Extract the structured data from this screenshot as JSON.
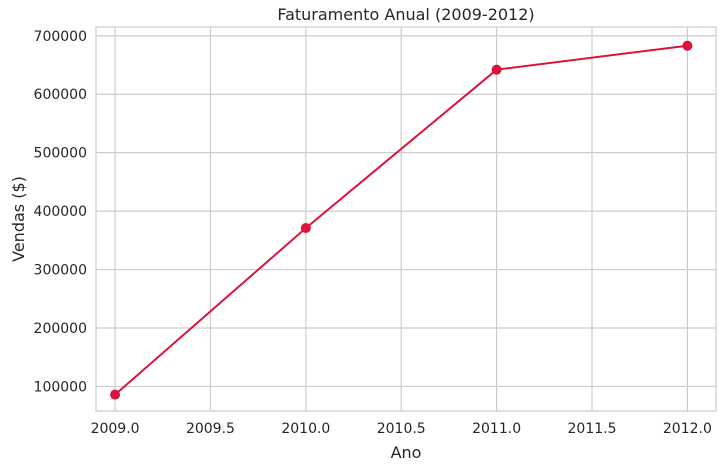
{
  "chart_data": {
    "type": "line",
    "title": "Faturamento Anual (2009-2012)",
    "xlabel": "Ano",
    "ylabel": "Vendas ($)",
    "x": [
      2009,
      2010,
      2011,
      2012
    ],
    "series": [
      {
        "values": [
          86000,
          371000,
          642000,
          683000
        ],
        "color": "#dc143c",
        "marker": "circle"
      }
    ],
    "xlim": [
      2008.9,
      2012.15
    ],
    "ylim": [
      58000,
      715000
    ],
    "xticks": [
      2009.0,
      2009.5,
      2010.0,
      2010.5,
      2011.0,
      2011.5,
      2012.0
    ],
    "xtick_labels": [
      "2009.0",
      "2009.5",
      "2010.0",
      "2010.5",
      "2011.0",
      "2011.5",
      "2012.0"
    ],
    "yticks": [
      100000,
      200000,
      300000,
      400000,
      500000,
      600000,
      700000
    ],
    "ytick_labels": [
      "100000",
      "200000",
      "300000",
      "400000",
      "500000",
      "600000",
      "700000"
    ],
    "grid": true,
    "grid_color": "#cccccc",
    "frame_color": "#cccccc"
  }
}
